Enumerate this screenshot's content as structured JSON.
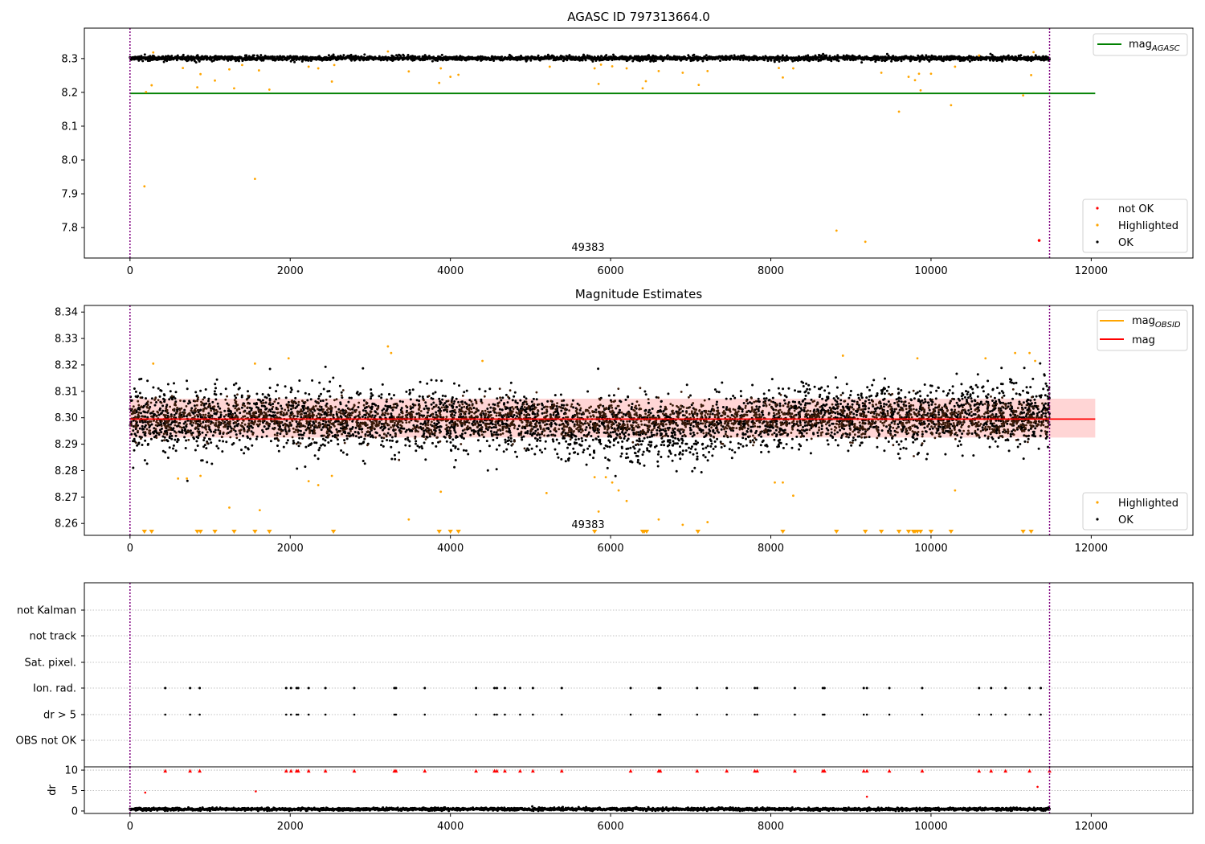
{
  "colors": {
    "ok": "#000000",
    "highlighted": "#ffa500",
    "not_ok": "#ff0000",
    "mag_agasc_line": "#008000",
    "mag_obsid_line": "#ffa500",
    "mag_line": "#ff0000",
    "mag_band": "#ffd5d5",
    "interval_line": "#800080",
    "grid": "#b0b0b0"
  },
  "chart_data": [
    {
      "type": "scatter",
      "title": "AGASC ID 797313664.0",
      "xlim": [
        -570,
        13270
      ],
      "ylim": [
        7.71,
        8.39
      ],
      "x_ticks": [
        "0",
        "2000",
        "4000",
        "6000",
        "8000",
        "10000",
        "12000"
      ],
      "y_ticks": [
        "7.8",
        "7.9",
        "8.0",
        "8.1",
        "8.2",
        "8.3"
      ],
      "legend_lines": [
        {
          "label": "mag",
          "sub": "AGASC",
          "color": "#008000",
          "position": "top-right"
        }
      ],
      "legend_points": [
        {
          "label": "not OK",
          "color": "#ff0000"
        },
        {
          "label": "Highlighted",
          "color": "#ffa500"
        },
        {
          "label": "OK",
          "color": "#000000"
        }
      ],
      "mag_agasc": 8.197,
      "obsid_label": "49383",
      "interval": [
        0,
        11480
      ],
      "ok_band": {
        "x_range": [
          0,
          11480
        ],
        "center": 8.301,
        "spread": 0.008
      },
      "highlighted_points": [
        [
          180,
          7.922
        ],
        [
          200,
          8.201
        ],
        [
          270,
          8.221
        ],
        [
          290,
          8.318
        ],
        [
          660,
          8.272
        ],
        [
          840,
          8.215
        ],
        [
          880,
          8.254
        ],
        [
          1060,
          8.235
        ],
        [
          1240,
          8.268
        ],
        [
          1300,
          8.212
        ],
        [
          1400,
          8.281
        ],
        [
          1560,
          7.944
        ],
        [
          1610,
          8.265
        ],
        [
          1740,
          8.208
        ],
        [
          2230,
          8.276
        ],
        [
          2350,
          8.271
        ],
        [
          2520,
          8.232
        ],
        [
          2550,
          8.281
        ],
        [
          3220,
          8.321
        ],
        [
          3480,
          8.262
        ],
        [
          3860,
          8.228
        ],
        [
          3880,
          8.271
        ],
        [
          4000,
          8.246
        ],
        [
          4100,
          8.252
        ],
        [
          5240,
          8.276
        ],
        [
          5800,
          8.271
        ],
        [
          5850,
          8.225
        ],
        [
          5880,
          8.282
        ],
        [
          6020,
          8.277
        ],
        [
          6200,
          8.271
        ],
        [
          6400,
          8.212
        ],
        [
          6440,
          8.233
        ],
        [
          6600,
          8.263
        ],
        [
          6900,
          8.258
        ],
        [
          7100,
          8.222
        ],
        [
          7210,
          8.263
        ],
        [
          8100,
          8.272
        ],
        [
          8150,
          8.244
        ],
        [
          8280,
          8.271
        ],
        [
          8820,
          7.791
        ],
        [
          9180,
          7.758
        ],
        [
          9380,
          8.258
        ],
        [
          9600,
          8.143
        ],
        [
          9720,
          8.246
        ],
        [
          9800,
          8.236
        ],
        [
          9850,
          8.255
        ],
        [
          9870,
          8.206
        ],
        [
          10000,
          8.255
        ],
        [
          10250,
          8.162
        ],
        [
          10300,
          8.276
        ],
        [
          10600,
          8.309
        ],
        [
          11150,
          8.191
        ],
        [
          11250,
          8.251
        ],
        [
          11280,
          8.319
        ]
      ],
      "not_ok_points": [
        [
          11350,
          7.762
        ]
      ]
    },
    {
      "type": "scatter",
      "title": "Magnitude Estimates",
      "xlim": [
        -570,
        13270
      ],
      "ylim": [
        8.2555,
        8.3425
      ],
      "x_ticks": [
        "0",
        "2000",
        "4000",
        "6000",
        "8000",
        "10000",
        "12000"
      ],
      "y_ticks": [
        "8.26",
        "8.27",
        "8.28",
        "8.29",
        "8.30",
        "8.31",
        "8.32",
        "8.33",
        "8.34"
      ],
      "legend_lines": [
        {
          "label": "mag",
          "sub": "OBSID",
          "color": "#ffa500",
          "position": "top-right"
        },
        {
          "label": "mag",
          "sub": "",
          "color": "#ff0000"
        }
      ],
      "legend_points": [
        {
          "label": "Highlighted",
          "color": "#ffa500"
        },
        {
          "label": "OK",
          "color": "#000000"
        }
      ],
      "mag": 8.2995,
      "mag_band": [
        8.2925,
        8.3072
      ],
      "obsid_label": "49383",
      "interval": [
        0,
        11480
      ],
      "ok_band": {
        "x_range": [
          0,
          11480
        ],
        "center": 8.299,
        "spread": 0.013
      },
      "highlighted_points": [
        [
          290,
          8.3205
        ],
        [
          600,
          8.277
        ],
        [
          710,
          8.277
        ],
        [
          880,
          8.278
        ],
        [
          1240,
          8.266
        ],
        [
          1560,
          8.3205
        ],
        [
          1620,
          8.265
        ],
        [
          1980,
          8.3225
        ],
        [
          2230,
          8.276
        ],
        [
          2350,
          8.2745
        ],
        [
          2520,
          8.278
        ],
        [
          3220,
          8.327
        ],
        [
          3260,
          8.3245
        ],
        [
          3480,
          8.2615
        ],
        [
          3880,
          8.272
        ],
        [
          4400,
          8.3215
        ],
        [
          5200,
          8.2715
        ],
        [
          5800,
          8.2775
        ],
        [
          5850,
          8.2645
        ],
        [
          5940,
          8.2775
        ],
        [
          6020,
          8.2755
        ],
        [
          6100,
          8.2725
        ],
        [
          6200,
          8.2685
        ],
        [
          6600,
          8.2615
        ],
        [
          6900,
          8.2595
        ],
        [
          7210,
          8.2605
        ],
        [
          8050,
          8.2755
        ],
        [
          8150,
          8.2755
        ],
        [
          8280,
          8.2705
        ],
        [
          8900,
          8.3235
        ],
        [
          9830,
          8.3225
        ],
        [
          10300,
          8.2725
        ],
        [
          10680,
          8.3225
        ],
        [
          11050,
          8.3245
        ],
        [
          11230,
          8.3245
        ],
        [
          11300,
          8.3215
        ]
      ],
      "below_limit_x": [
        180,
        270,
        840,
        880,
        1060,
        1300,
        1560,
        1740,
        2540,
        3860,
        4000,
        4100,
        5800,
        6400,
        6420,
        6450,
        7090,
        8150,
        8820,
        9180,
        9380,
        9600,
        9720,
        9780,
        9800,
        9830,
        9870,
        10000,
        10250,
        11150,
        11250
      ]
    },
    {
      "type": "scatter",
      "x_ticks": [
        "0",
        "2000",
        "4000",
        "6000",
        "8000",
        "10000",
        "12000"
      ],
      "xlim": [
        -570,
        13270
      ],
      "flag_labels": [
        "not Kalman",
        "not track",
        "Sat. pixel.",
        "Ion. rad.",
        "dr > 5",
        "OBS not OK"
      ],
      "flag_x": [
        440,
        750,
        870,
        1950,
        2010,
        2080,
        2100,
        2230,
        2440,
        2800,
        3300,
        3320,
        3680,
        4320,
        4550,
        4580,
        4680,
        4870,
        5030,
        5390,
        6250,
        6600,
        6620,
        7080,
        7450,
        7800,
        7830,
        8300,
        8650,
        8670,
        9160,
        9200,
        9480,
        9890,
        10600,
        10750,
        10930,
        11230,
        11370
      ],
      "interval": [
        0,
        11480
      ]
    },
    {
      "type": "scatter",
      "ylabel": "dr",
      "xlim": [
        -570,
        13270
      ],
      "ylim": [
        -0.6,
        10.8
      ],
      "y_ticks": [
        "0",
        "5",
        "10"
      ],
      "x_ticks": [
        "0",
        "2000",
        "4000",
        "6000",
        "8000",
        "10000",
        "12000"
      ],
      "interval": [
        0,
        11480
      ],
      "capped_x": [
        440,
        750,
        870,
        1950,
        2010,
        2080,
        2100,
        2230,
        2440,
        2800,
        3300,
        3320,
        3680,
        4320,
        4550,
        4580,
        4680,
        4870,
        5030,
        5390,
        6250,
        6600,
        6620,
        7080,
        7450,
        7800,
        7830,
        8300,
        8650,
        8670,
        9160,
        9200,
        9480,
        9890,
        10600,
        10750,
        10930,
        11230,
        11480
      ],
      "outlier_points": [
        [
          190,
          4.5
        ],
        [
          1570,
          4.8
        ],
        [
          9200,
          3.5
        ],
        [
          11330,
          5.9
        ]
      ],
      "ok_band": {
        "x_range": [
          0,
          11480
        ],
        "center": 0.45,
        "spread": 0.35
      }
    }
  ]
}
